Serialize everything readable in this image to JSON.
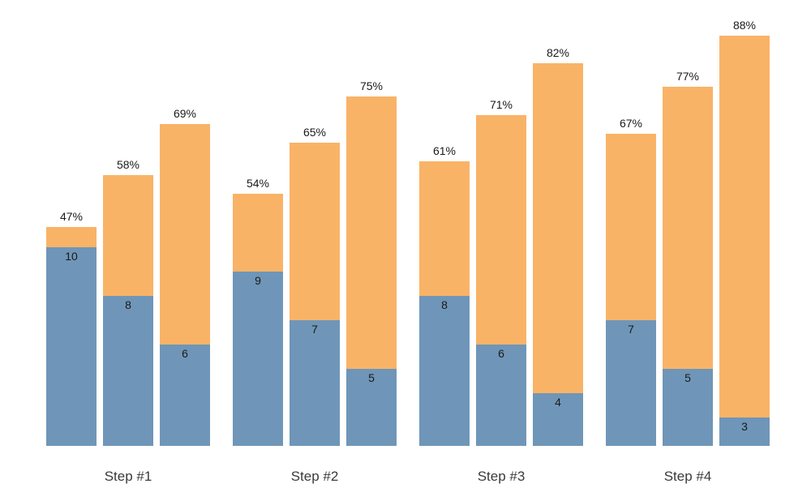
{
  "chart_data": {
    "type": "bar",
    "subtype": "grouped-stacked",
    "title": "",
    "xlabel": "",
    "ylabel": "",
    "grid": "off",
    "legend": "none",
    "background": "#ffffff",
    "colors": {
      "bottom_segment": "#6f96b8",
      "top_segment": "#f9b367",
      "label_text": "#1a1a1a",
      "axis_text": "#3a3a3a"
    },
    "categories": [
      "Step #1",
      "Step #2",
      "Step #3",
      "Step #4"
    ],
    "groups": [
      {
        "label": "Step #1",
        "bars": [
          {
            "count": 10,
            "percent": 47,
            "percent_label": "47%"
          },
          {
            "count": 8,
            "percent": 58,
            "percent_label": "58%"
          },
          {
            "count": 6,
            "percent": 69,
            "percent_label": "69%"
          }
        ]
      },
      {
        "label": "Step #2",
        "bars": [
          {
            "count": 9,
            "percent": 54,
            "percent_label": "54%"
          },
          {
            "count": 7,
            "percent": 65,
            "percent_label": "65%"
          },
          {
            "count": 5,
            "percent": 75,
            "percent_label": "75%"
          }
        ]
      },
      {
        "label": "Step #3",
        "bars": [
          {
            "count": 8,
            "percent": 61,
            "percent_label": "61%"
          },
          {
            "count": 6,
            "percent": 71,
            "percent_label": "71%"
          },
          {
            "count": 4,
            "percent": 82,
            "percent_label": "82%"
          }
        ]
      },
      {
        "label": "Step #4",
        "bars": [
          {
            "count": 7,
            "percent": 67,
            "percent_label": "67%"
          },
          {
            "count": 5,
            "percent": 77,
            "percent_label": "77%"
          },
          {
            "count": 3,
            "percent": 88,
            "percent_label": "88%"
          }
        ]
      }
    ]
  }
}
